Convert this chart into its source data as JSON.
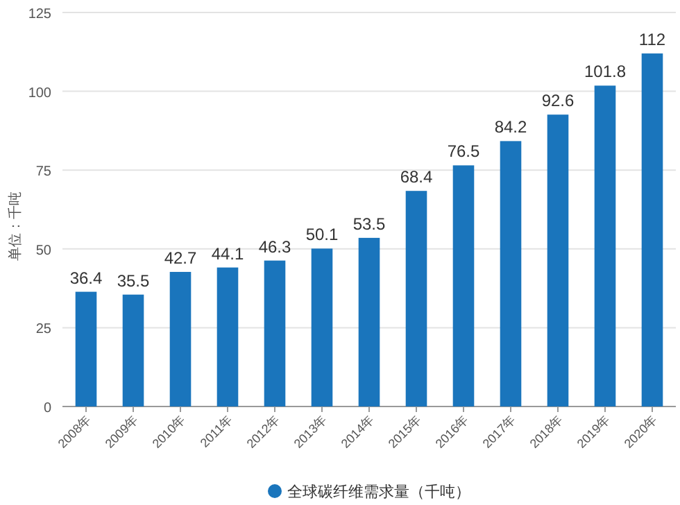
{
  "chart_data": {
    "type": "bar",
    "ylabel": "单位：千吨",
    "categories": [
      "2008年",
      "2009年",
      "2010年",
      "2011年",
      "2012年",
      "2013年",
      "2014年",
      "2015年",
      "2016年",
      "2017年",
      "2018年",
      "2019年",
      "2020年"
    ],
    "series": [
      {
        "name": "全球碳纤维需求量（千吨）",
        "color": "#1a75bc",
        "values": [
          36.4,
          35.5,
          42.7,
          44.1,
          46.3,
          50.1,
          53.5,
          68.4,
          76.5,
          84.2,
          92.6,
          101.8,
          112
        ]
      }
    ],
    "ylim": [
      0,
      125
    ],
    "yticks": [
      0,
      25,
      50,
      75,
      100,
      125
    ],
    "grid": "y",
    "legend": "bottom",
    "data_labels": true
  }
}
